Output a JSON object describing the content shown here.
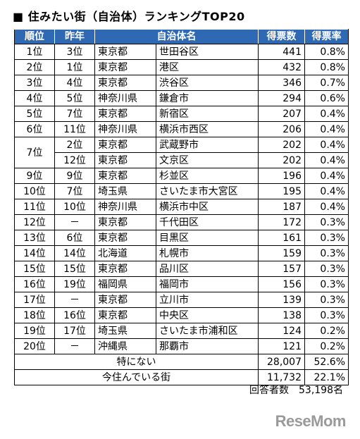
{
  "title": "住みたい街（自治体）ランキングTOP20",
  "title_bullet": "■",
  "header": {
    "rank": "順位",
    "last_year": "昨年",
    "municipality": "自治体名",
    "votes": "得票数",
    "share": "得票率"
  },
  "rows": [
    {
      "rank": "1位",
      "last": "3位",
      "pref": "東京都",
      "city": "世田谷区",
      "votes": "441",
      "share": "0.8%"
    },
    {
      "rank": "2位",
      "last": "1位",
      "pref": "東京都",
      "city": "港区",
      "votes": "432",
      "share": "0.8%"
    },
    {
      "rank": "3位",
      "last": "4位",
      "pref": "東京都",
      "city": "渋谷区",
      "votes": "346",
      "share": "0.7%"
    },
    {
      "rank": "4位",
      "last": "5位",
      "pref": "神奈川県",
      "city": "鎌倉市",
      "votes": "294",
      "share": "0.6%"
    },
    {
      "rank": "5位",
      "last": "7位",
      "pref": "東京都",
      "city": "新宿区",
      "votes": "207",
      "share": "0.4%"
    },
    {
      "rank": "6位",
      "last": "11位",
      "pref": "神奈川県",
      "city": "横浜市西区",
      "votes": "206",
      "share": "0.4%"
    },
    {
      "rank": "7位",
      "last": "2位",
      "pref": "東京都",
      "city": "武蔵野市",
      "votes": "202",
      "share": "0.4%"
    },
    {
      "rank": "",
      "last": "12位",
      "pref": "東京都",
      "city": "文京区",
      "votes": "202",
      "share": "0.4%"
    },
    {
      "rank": "9位",
      "last": "9位",
      "pref": "東京都",
      "city": "杉並区",
      "votes": "196",
      "share": "0.4%"
    },
    {
      "rank": "10位",
      "last": "7位",
      "pref": "埼玉県",
      "city": "さいたま市大宮区",
      "votes": "195",
      "share": "0.4%"
    },
    {
      "rank": "11位",
      "last": "10位",
      "pref": "神奈川県",
      "city": "横浜市中区",
      "votes": "187",
      "share": "0.4%"
    },
    {
      "rank": "12位",
      "last": "－",
      "pref": "東京都",
      "city": "千代田区",
      "votes": "172",
      "share": "0.3%"
    },
    {
      "rank": "13位",
      "last": "6位",
      "pref": "東京都",
      "city": "目黒区",
      "votes": "161",
      "share": "0.3%"
    },
    {
      "rank": "14位",
      "last": "14位",
      "pref": "北海道",
      "city": "札幌市",
      "votes": "159",
      "share": "0.3%"
    },
    {
      "rank": "15位",
      "last": "15位",
      "pref": "東京都",
      "city": "品川区",
      "votes": "157",
      "share": "0.3%"
    },
    {
      "rank": "16位",
      "last": "19位",
      "pref": "福岡県",
      "city": "福岡市",
      "votes": "156",
      "share": "0.3%"
    },
    {
      "rank": "17位",
      "last": "－",
      "pref": "東京都",
      "city": "立川市",
      "votes": "139",
      "share": "0.3%"
    },
    {
      "rank": "18位",
      "last": "16位",
      "pref": "東京都",
      "city": "中央区",
      "votes": "138",
      "share": "0.3%"
    },
    {
      "rank": "19位",
      "last": "17位",
      "pref": "埼玉県",
      "city": "さいたま市浦和区",
      "votes": "124",
      "share": "0.2%"
    },
    {
      "rank": "20位",
      "last": "－",
      "pref": "沖縄県",
      "city": "那覇市",
      "votes": "121",
      "share": "0.2%"
    }
  ],
  "footer_rows": [
    {
      "label": "特にない",
      "votes": "28,007",
      "share": "52.6%"
    },
    {
      "label": "今住んでいる街",
      "votes": "11,732",
      "share": "22.1%"
    }
  ],
  "respondents": {
    "label": "回答者数",
    "value": "53,198名"
  },
  "logo": {
    "text": "ReseMom"
  },
  "colors": {
    "header_bg": "#2f69b3",
    "header_text": "#ffffff",
    "logo": "#9a9a9a"
  }
}
